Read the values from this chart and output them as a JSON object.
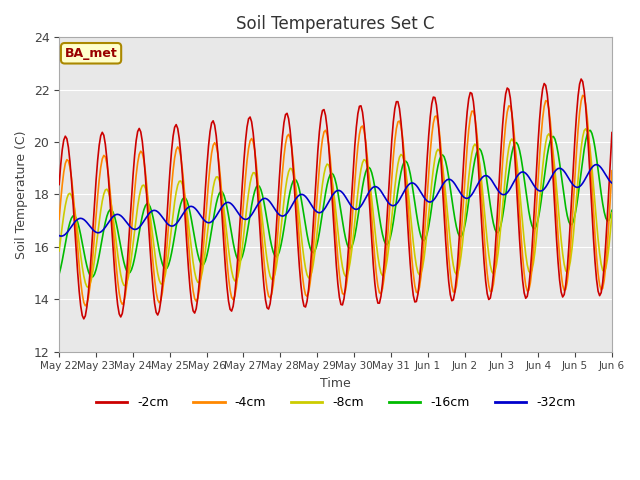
{
  "title": "Soil Temperatures Set C",
  "xlabel": "Time",
  "ylabel": "Soil Temperature (C)",
  "ylim": [
    12,
    24
  ],
  "yticks": [
    12,
    14,
    16,
    18,
    20,
    22,
    24
  ],
  "annotation": "BA_met",
  "bg_color": "#e8e8e8",
  "fig_color": "#ffffff",
  "line_colors": {
    "-2cm": "#cc0000",
    "-4cm": "#ff8800",
    "-8cm": "#cccc00",
    "-16cm": "#00bb00",
    "-32cm": "#0000cc"
  },
  "x_labels": [
    "May 22",
    "May 23",
    "May 24",
    "May 25",
    "May 26",
    "May 27",
    "May 28",
    "May 29",
    "May 30",
    "May 31",
    "Jun 1",
    "Jun 2",
    "Jun 3",
    "Jun 4",
    "Jun 5",
    "Jun 6"
  ],
  "n_days": 15,
  "legend_labels": [
    "-2cm",
    "-4cm",
    "-8cm",
    "-16cm",
    "-32cm"
  ]
}
